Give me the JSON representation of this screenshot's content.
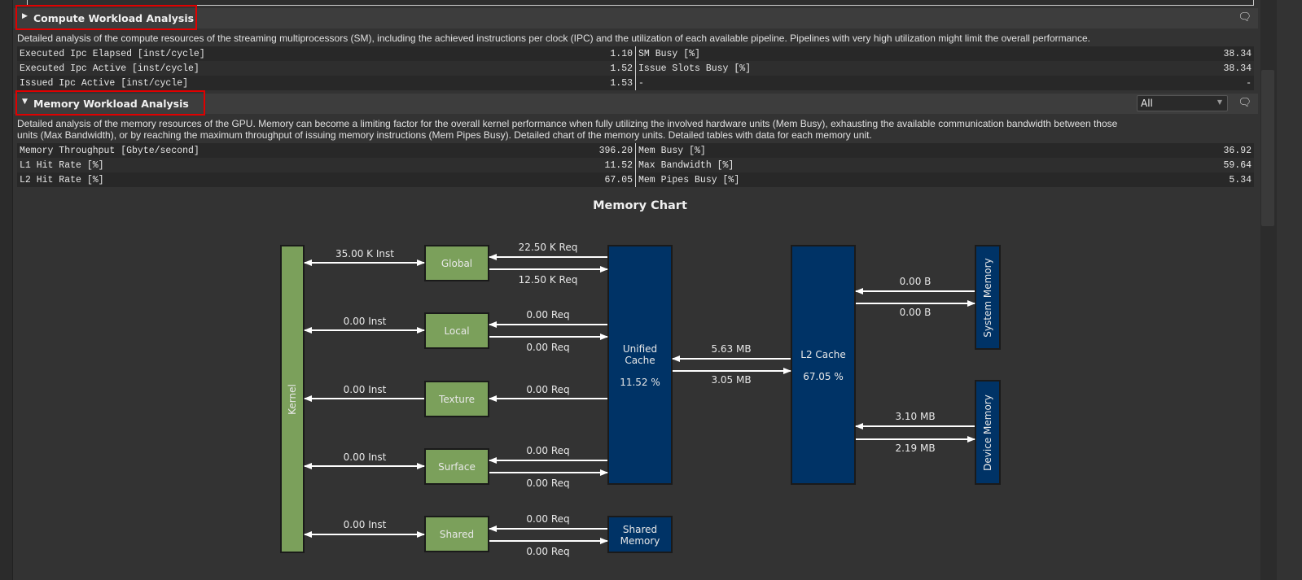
{
  "compute": {
    "title": "Compute Workload Analysis",
    "description": "Detailed analysis of the compute resources of the streaming multiprocessors (SM), including the achieved instructions per clock (IPC) and the utilization of each available pipeline. Pipelines with very high utilization might limit the overall performance.",
    "rows": [
      {
        "l_label": "Executed Ipc Elapsed [inst/cycle]",
        "l_value": "1.10",
        "r_label": "SM Busy [%]",
        "r_value": "38.34"
      },
      {
        "l_label": "Executed Ipc Active [inst/cycle]",
        "l_value": "1.52",
        "r_label": "Issue Slots Busy [%]",
        "r_value": "38.34"
      },
      {
        "l_label": "Issued Ipc Active [inst/cycle]",
        "l_value": "1.53",
        "r_label": "-",
        "r_value": "-"
      }
    ]
  },
  "memory": {
    "title": "Memory Workload Analysis",
    "filter_value": "All",
    "description_line1": "Detailed analysis of the memory resources of the GPU. Memory can become a limiting factor for the overall kernel performance when fully utilizing the involved hardware units (Mem Busy), exhausting the available communication bandwidth between those",
    "description_line2": "units (Max Bandwidth), or by reaching the maximum throughput of issuing memory instructions (Mem Pipes Busy). Detailed chart of the memory units. Detailed tables with data for each memory unit.",
    "rows": [
      {
        "l_label": "Memory Throughput [Gbyte/second]",
        "l_value": "396.20",
        "r_label": "Mem Busy [%]",
        "r_value": "36.92"
      },
      {
        "l_label": "L1 Hit Rate [%]",
        "l_value": "11.52",
        "r_label": "Max Bandwidth [%]",
        "r_value": "59.64"
      },
      {
        "l_label": "L2 Hit Rate [%]",
        "l_value": "67.05",
        "r_label": "Mem Pipes Busy [%]",
        "r_value": "5.34"
      }
    ]
  },
  "memory_chart": {
    "title": "Memory Chart",
    "colors": {
      "green": "#7ba05b",
      "blue": "#003366"
    },
    "kernel": "Kernel",
    "units": {
      "global": {
        "label": "Global",
        "inst": "35.00 K Inst",
        "req_in": "22.50 K Req",
        "req_out": "12.50 K Req"
      },
      "local": {
        "label": "Local",
        "inst": "0.00 Inst",
        "req_in": "0.00 Req",
        "req_out": "0.00 Req"
      },
      "texture": {
        "label": "Texture",
        "inst": "0.00 Inst",
        "req_in": "0.00 Req"
      },
      "surface": {
        "label": "Surface",
        "inst": "0.00 Inst",
        "req_in": "0.00 Req",
        "req_out": "0.00 Req"
      },
      "shared": {
        "label": "Shared",
        "inst": "0.00 Inst",
        "req_in": "0.00 Req",
        "req_out": "0.00 Req"
      }
    },
    "unified_cache": {
      "label1": "Unified",
      "label2": "Cache",
      "hit_rate": "11.52 %"
    },
    "shared_memory": {
      "label1": "Shared",
      "label2": "Memory"
    },
    "l2_cache": {
      "label": "L2 Cache",
      "hit_rate": "67.05 %",
      "to_l1": "5.63 MB",
      "from_l1": "3.05 MB"
    },
    "system_memory": {
      "label": "System Memory",
      "to_l2": "0.00 B",
      "from_l2": "0.00 B"
    },
    "device_memory": {
      "label": "Device Memory",
      "to_l2": "3.10 MB",
      "from_l2": "2.19 MB"
    }
  }
}
